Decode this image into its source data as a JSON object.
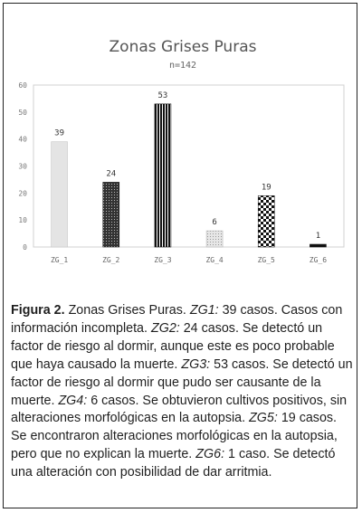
{
  "chart_data": {
    "type": "bar",
    "title": "Zonas Grises Puras",
    "subtitle": "n=142",
    "categories": [
      "ZG_1",
      "ZG_2",
      "ZG_3",
      "ZG_4",
      "ZG_5",
      "ZG_6"
    ],
    "values": [
      39,
      24,
      53,
      6,
      19,
      1
    ],
    "data_labels": [
      "39",
      "24",
      "53",
      "6",
      "19",
      "1"
    ],
    "yticks": [
      "0",
      "10",
      "20",
      "30",
      "40",
      "50",
      "60"
    ],
    "ylim": [
      0,
      60
    ],
    "grid": false,
    "legend": "none",
    "bar_fills": [
      "light-gray",
      "dots-dark",
      "vertical-stripes",
      "light-dots",
      "checker",
      "black"
    ]
  },
  "caption": {
    "figure_label": "Figura 2.",
    "title": " Zonas Grises Puras. ",
    "items": [
      {
        "tag": "ZG1:",
        "text": " 39 casos. Casos con información incompleta.  "
      },
      {
        "tag": "ZG2:",
        "text": " 24 casos. Se detectó un factor de riesgo al dormir, aunque este es poco probable que haya causado la muerte.  "
      },
      {
        "tag": "ZG3:",
        "text": " 53 casos. Se detectó un factor de riesgo al dormir que pudo ser causante de la muerte. "
      },
      {
        "tag": "ZG4:",
        "text": " 6 casos. Se obtuvieron cultivos positivos, sin alteraciones morfológicas en la autopsia. "
      },
      {
        "tag": "ZG5:",
        "text": " 19 casos.  Se encontraron alteraciones morfológicas en la autopsia, pero que no explican la muerte.  "
      },
      {
        "tag": "ZG6:",
        "text": " 1 caso. Se detectó una alteración con posibilidad de dar arritmia."
      }
    ]
  }
}
